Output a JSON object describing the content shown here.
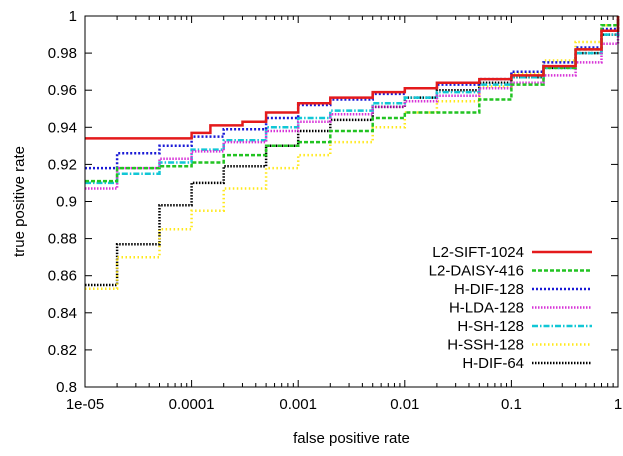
{
  "chart_data": {
    "type": "line",
    "xlabel": "false positive rate",
    "ylabel": "true positive rate",
    "xscale": "log",
    "xlim": [
      1e-05,
      1
    ],
    "ylim": [
      0.8,
      1
    ],
    "x_ticks": [
      {
        "value": 1e-05,
        "label": "1e-05"
      },
      {
        "value": 0.0001,
        "label": "0.0001"
      },
      {
        "value": 0.001,
        "label": "0.001"
      },
      {
        "value": 0.01,
        "label": "0.01"
      },
      {
        "value": 0.1,
        "label": "0.1"
      },
      {
        "value": 1,
        "label": "1"
      }
    ],
    "y_ticks": [
      {
        "value": 0.8,
        "label": "0.8"
      },
      {
        "value": 0.82,
        "label": "0.82"
      },
      {
        "value": 0.84,
        "label": "0.84"
      },
      {
        "value": 0.86,
        "label": "0.86"
      },
      {
        "value": 0.88,
        "label": "0.88"
      },
      {
        "value": 0.9,
        "label": "0.9"
      },
      {
        "value": 0.92,
        "label": "0.92"
      },
      {
        "value": 0.94,
        "label": "0.94"
      },
      {
        "value": 0.96,
        "label": "0.96"
      },
      {
        "value": 0.98,
        "label": "0.98"
      },
      {
        "value": 1,
        "label": "1"
      }
    ],
    "grid": false,
    "legend_position": "bottom-right",
    "series": [
      {
        "name": "L2-SIFT-1024",
        "color": "#e41a1c",
        "dash": "solid",
        "width": 2.5,
        "x": [
          1e-05,
          3e-05,
          0.0001,
          0.00015,
          0.0003,
          0.0005,
          0.001,
          0.002,
          0.005,
          0.01,
          0.02,
          0.05,
          0.1,
          0.2,
          0.4,
          0.7,
          1
        ],
        "y": [
          0.934,
          0.934,
          0.937,
          0.941,
          0.943,
          0.948,
          0.953,
          0.956,
          0.959,
          0.961,
          0.964,
          0.966,
          0.968,
          0.973,
          0.982,
          0.992,
          1.0
        ]
      },
      {
        "name": "L2-DAISY-416",
        "color": "#22c322",
        "dash": "4,2",
        "width": 2.5,
        "x": [
          1e-05,
          2e-05,
          5e-05,
          0.0001,
          0.0002,
          0.0005,
          0.001,
          0.002,
          0.005,
          0.01,
          0.02,
          0.05,
          0.1,
          0.2,
          0.4,
          0.7,
          1
        ],
        "y": [
          0.911,
          0.918,
          0.919,
          0.921,
          0.925,
          0.93,
          0.932,
          0.938,
          0.945,
          0.948,
          0.948,
          0.955,
          0.963,
          0.972,
          0.982,
          0.995,
          1.0
        ]
      },
      {
        "name": "H-DIF-128",
        "color": "#1a1ad6",
        "dash": "2,2",
        "width": 2.5,
        "x": [
          1e-05,
          2e-05,
          5e-05,
          0.0001,
          0.0002,
          0.0005,
          0.001,
          0.002,
          0.005,
          0.01,
          0.02,
          0.05,
          0.1,
          0.2,
          0.4,
          0.7,
          1
        ],
        "y": [
          0.918,
          0.926,
          0.93,
          0.935,
          0.939,
          0.945,
          0.952,
          0.955,
          0.958,
          0.961,
          0.963,
          0.966,
          0.97,
          0.975,
          0.983,
          0.993,
          1.0
        ]
      },
      {
        "name": "H-LDA-128",
        "color": "#d733d7",
        "dash": "1.5,1.5",
        "width": 2.5,
        "x": [
          1e-05,
          2e-05,
          5e-05,
          0.0001,
          0.0002,
          0.0005,
          0.001,
          0.002,
          0.005,
          0.01,
          0.02,
          0.05,
          0.1,
          0.2,
          0.4,
          0.7,
          1
        ],
        "y": [
          0.907,
          0.918,
          0.923,
          0.927,
          0.932,
          0.938,
          0.943,
          0.947,
          0.951,
          0.954,
          0.957,
          0.961,
          0.964,
          0.968,
          0.975,
          0.985,
          0.997
        ]
      },
      {
        "name": "H-SH-128",
        "color": "#11c7d6",
        "dash": "6,2,1.5,2",
        "width": 2.5,
        "x": [
          1e-05,
          2e-05,
          5e-05,
          0.0001,
          0.0002,
          0.0005,
          0.001,
          0.002,
          0.005,
          0.01,
          0.02,
          0.05,
          0.1,
          0.2,
          0.4,
          0.7,
          1
        ],
        "y": [
          0.91,
          0.915,
          0.921,
          0.928,
          0.933,
          0.94,
          0.945,
          0.949,
          0.953,
          0.956,
          0.959,
          0.963,
          0.967,
          0.972,
          0.98,
          0.99,
          1.0
        ]
      },
      {
        "name": "H-SSH-128",
        "color": "#ffe81a",
        "dash": "1.5,2.5",
        "width": 2.5,
        "x": [
          1e-05,
          2e-05,
          5e-05,
          0.0001,
          0.0002,
          0.0005,
          0.001,
          0.002,
          0.005,
          0.01,
          0.02,
          0.05,
          0.1,
          0.2,
          0.4,
          0.7,
          1
        ],
        "y": [
          0.853,
          0.87,
          0.885,
          0.895,
          0.907,
          0.918,
          0.925,
          0.932,
          0.94,
          0.948,
          0.954,
          0.962,
          0.969,
          0.976,
          0.986,
          0.995,
          1.0
        ]
      },
      {
        "name": "H-DIF-64",
        "color": "#000000",
        "dash": "1.5,1.5",
        "width": 2.5,
        "x": [
          1e-05,
          2e-05,
          5e-05,
          0.0001,
          0.0002,
          0.0005,
          0.001,
          0.002,
          0.005,
          0.01,
          0.02,
          0.05,
          0.1,
          0.2,
          0.4,
          0.7,
          1
        ],
        "y": [
          0.855,
          0.877,
          0.898,
          0.91,
          0.919,
          0.93,
          0.938,
          0.944,
          0.951,
          0.956,
          0.96,
          0.964,
          0.967,
          0.972,
          0.98,
          0.99,
          1.0
        ]
      }
    ]
  }
}
